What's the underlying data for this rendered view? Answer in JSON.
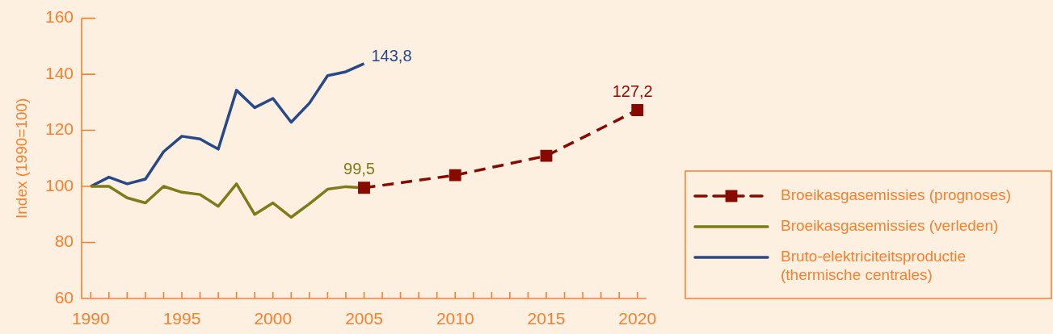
{
  "chart_data": {
    "type": "line",
    "ylabel": "Index (1990=100)",
    "xlim": [
      1989.5,
      2020.5
    ],
    "xticks": [
      1990,
      {
        "value": 1991,
        "label": null
      },
      {
        "value": 1992,
        "label": null
      },
      {
        "value": 1993,
        "label": null
      },
      {
        "value": 1994,
        "label": null
      },
      1995,
      {
        "value": 1996,
        "label": null
      },
      {
        "value": 1997,
        "label": null
      },
      {
        "value": 1998,
        "label": null
      },
      {
        "value": 1999,
        "label": null
      },
      2000,
      {
        "value": 2001,
        "label": null
      },
      {
        "value": 2002,
        "label": null
      },
      {
        "value": 2003,
        "label": null
      },
      {
        "value": 2004,
        "label": null
      },
      2005,
      {
        "value": 2006,
        "label": null
      },
      {
        "value": 2007,
        "label": null
      },
      {
        "value": 2008,
        "label": null
      },
      {
        "value": 2009,
        "label": null
      },
      2010,
      {
        "value": 2011,
        "label": null
      },
      {
        "value": 2012,
        "label": null
      },
      {
        "value": 2013,
        "label": null
      },
      {
        "value": 2014,
        "label": null
      },
      2015,
      {
        "value": 2016,
        "label": null
      },
      {
        "value": 2017,
        "label": null
      },
      {
        "value": 2018,
        "label": null
      },
      {
        "value": 2019,
        "label": null
      },
      2020
    ],
    "ylim": [
      60,
      160
    ],
    "yticks": [
      60,
      80,
      100,
      120,
      140,
      160
    ],
    "legend": "right",
    "series": [
      {
        "name": "Broeikasgasemissies (prognoses)",
        "color": "#870a00",
        "marker": "square",
        "line_style": "dashed",
        "x": [
          2005,
          2010,
          2015,
          2020
        ],
        "values": [
          99.5,
          104,
          110.9,
          127.2
        ],
        "value_labels": [
          null,
          null,
          null,
          "127,2"
        ]
      },
      {
        "name": "Broeikasgasemissies (verleden)",
        "color": "#7f7a1a",
        "marker": "none",
        "line_style": "solid",
        "x": [
          1990,
          1991,
          1992,
          1993,
          1994,
          1995,
          1996,
          1997,
          1998,
          1999,
          2000,
          2001,
          2002,
          2003,
          2004,
          2005
        ],
        "values": [
          100,
          100,
          95.9,
          94.1,
          100,
          97.9,
          97.1,
          92.9,
          100.9,
          90,
          94.1,
          89,
          93.8,
          99,
          99.9,
          99.5
        ],
        "value_labels": [
          null,
          null,
          null,
          null,
          null,
          null,
          null,
          null,
          null,
          null,
          null,
          null,
          null,
          null,
          null,
          "99,5"
        ]
      },
      {
        "name": "Bruto-elektriciteitsproductie (thermische centrales)",
        "color": "#27498a",
        "marker": "none",
        "line_style": "solid",
        "x": [
          1990,
          1991,
          1992,
          1993,
          1994,
          1995,
          1996,
          1997,
          1998,
          1999,
          2000,
          2001,
          2002,
          2003,
          2004,
          2005
        ],
        "values": [
          100,
          103.3,
          100.9,
          102.6,
          112.4,
          117.9,
          116.9,
          113.3,
          134.3,
          128.1,
          131.4,
          122.9,
          129.7,
          139.5,
          140.9,
          143.8
        ],
        "value_labels": [
          null,
          null,
          null,
          null,
          null,
          null,
          null,
          null,
          null,
          null,
          null,
          null,
          null,
          null,
          null,
          "143,8"
        ]
      }
    ]
  }
}
